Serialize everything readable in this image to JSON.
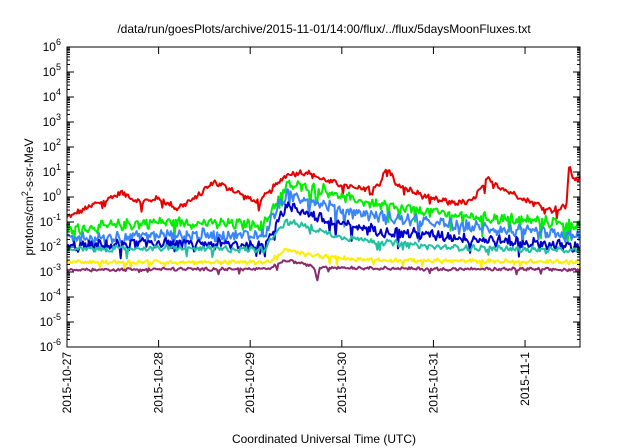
{
  "chart_data": {
    "type": "line",
    "title": "/data/run/goesPlots/archive/2015-11-01/14:00/flux/../flux/5daysMoonFluxes.txt",
    "xlabel": "Coordinated Universal Time (UTC)",
    "ylabel": {
      "base": "protons/cm",
      "sup": "2",
      "rest": "-s-sr-MeV"
    },
    "x_unit": "days",
    "xlim": [
      0,
      5.6
    ],
    "ylim": [
      1e-06,
      1000000.0
    ],
    "y_scale": "log",
    "grid": false,
    "legend": "none",
    "x_ticks": [
      {
        "x": 0,
        "label": "2015-10-27"
      },
      {
        "x": 1,
        "label": "2015-10-28"
      },
      {
        "x": 2,
        "label": "2015-10-29"
      },
      {
        "x": 3,
        "label": "2015-10-30"
      },
      {
        "x": 4,
        "label": "2015-10-31"
      },
      {
        "x": 5,
        "label": "2015-11-1"
      }
    ],
    "y_ticks": [
      {
        "exp": "6",
        "value": 1000000.0
      },
      {
        "exp": "5",
        "value": 100000.0
      },
      {
        "exp": "4",
        "value": 10000.0
      },
      {
        "exp": "3",
        "value": 1000.0
      },
      {
        "exp": "2",
        "value": 100.0
      },
      {
        "exp": "1",
        "value": 10.0
      },
      {
        "exp": "0",
        "value": 1
      },
      {
        "exp": "-1",
        "value": 0.1
      },
      {
        "exp": "-2",
        "value": 0.01
      },
      {
        "exp": "-3",
        "value": 0.001
      },
      {
        "exp": "-4",
        "value": 0.0001
      },
      {
        "exp": "-5",
        "value": 1e-05
      },
      {
        "exp": "-6",
        "value": 1e-06
      }
    ],
    "series": [
      {
        "color": "#e60000",
        "noise": 0.1,
        "x": [
          0,
          0.3,
          0.6,
          0.8,
          1.0,
          1.2,
          1.4,
          1.6,
          1.8,
          2.0,
          2.1,
          2.2,
          2.4,
          2.6,
          2.8,
          3.0,
          3.2,
          3.4,
          3.5,
          3.6,
          3.8,
          4.0,
          4.2,
          4.4,
          4.6,
          4.8,
          5.0,
          5.2,
          5.3,
          5.45,
          5.48,
          5.52,
          5.6
        ],
        "y": [
          0.15,
          0.5,
          1.5,
          0.6,
          0.9,
          0.35,
          0.9,
          4,
          2,
          0.8,
          0.6,
          1.5,
          8,
          10,
          5,
          3,
          2,
          3,
          15,
          3,
          1.5,
          0.8,
          0.6,
          0.6,
          5,
          1.8,
          0.8,
          0.4,
          0.3,
          0.4,
          18,
          6,
          5
        ]
      },
      {
        "color": "#00ee00",
        "noise": 0.18,
        "x": [
          0,
          1.0,
          2.0,
          2.15,
          2.3,
          2.4,
          2.6,
          2.8,
          3.0,
          3.5,
          4.0,
          4.5,
          5.0,
          5.6
        ],
        "y": [
          0.05,
          0.1,
          0.08,
          0.08,
          0.8,
          3,
          2.5,
          2,
          1,
          0.4,
          0.25,
          0.15,
          0.12,
          0.08
        ]
      },
      {
        "color": "#3a85ff",
        "noise": 0.2,
        "x": [
          0,
          1.0,
          2.0,
          2.15,
          2.3,
          2.4,
          2.6,
          2.8,
          3.0,
          3.5,
          4.0,
          4.5,
          5.0,
          5.6
        ],
        "y": [
          0.02,
          0.03,
          0.03,
          0.03,
          0.4,
          1.2,
          0.9,
          0.5,
          0.3,
          0.15,
          0.09,
          0.06,
          0.04,
          0.025
        ]
      },
      {
        "color": "#0000cc",
        "noise": 0.18,
        "x": [
          0,
          1.0,
          2.0,
          2.15,
          2.3,
          2.4,
          2.6,
          2.8,
          3.0,
          3.5,
          4.0,
          4.5,
          5.0,
          5.6
        ],
        "y": [
          0.01,
          0.015,
          0.012,
          0.012,
          0.12,
          0.45,
          0.25,
          0.12,
          0.08,
          0.04,
          0.03,
          0.02,
          0.015,
          0.01
        ]
      },
      {
        "color": "#20c0a0",
        "noise": 0.1,
        "x": [
          0,
          1.0,
          2.0,
          2.15,
          2.3,
          2.4,
          2.6,
          2.8,
          3.0,
          3.5,
          4.0,
          4.5,
          5.0,
          5.6
        ],
        "y": [
          0.008,
          0.009,
          0.008,
          0.008,
          0.05,
          0.1,
          0.07,
          0.04,
          0.025,
          0.015,
          0.01,
          0.009,
          0.008,
          0.007
        ]
      },
      {
        "color": "#ffee00",
        "noise": 0.07,
        "x": [
          0,
          1.0,
          2.0,
          2.2,
          2.4,
          2.6,
          3.0,
          3.5,
          4.0,
          5.0,
          5.6
        ],
        "y": [
          0.0025,
          0.0025,
          0.0025,
          0.0025,
          0.008,
          0.005,
          0.0035,
          0.003,
          0.0028,
          0.0026,
          0.0025
        ]
      },
      {
        "color": "#8b2a6e",
        "noise": 0.05,
        "x": [
          0,
          1.0,
          2.0,
          2.2,
          2.4,
          2.6,
          2.7,
          2.73,
          2.76,
          3.0,
          3.5,
          4.0,
          5.0,
          5.6
        ],
        "y": [
          0.0012,
          0.0013,
          0.0013,
          0.0013,
          0.003,
          0.002,
          0.0016,
          0.0004,
          0.0016,
          0.0015,
          0.0014,
          0.0013,
          0.0013,
          0.0012
        ]
      }
    ]
  }
}
